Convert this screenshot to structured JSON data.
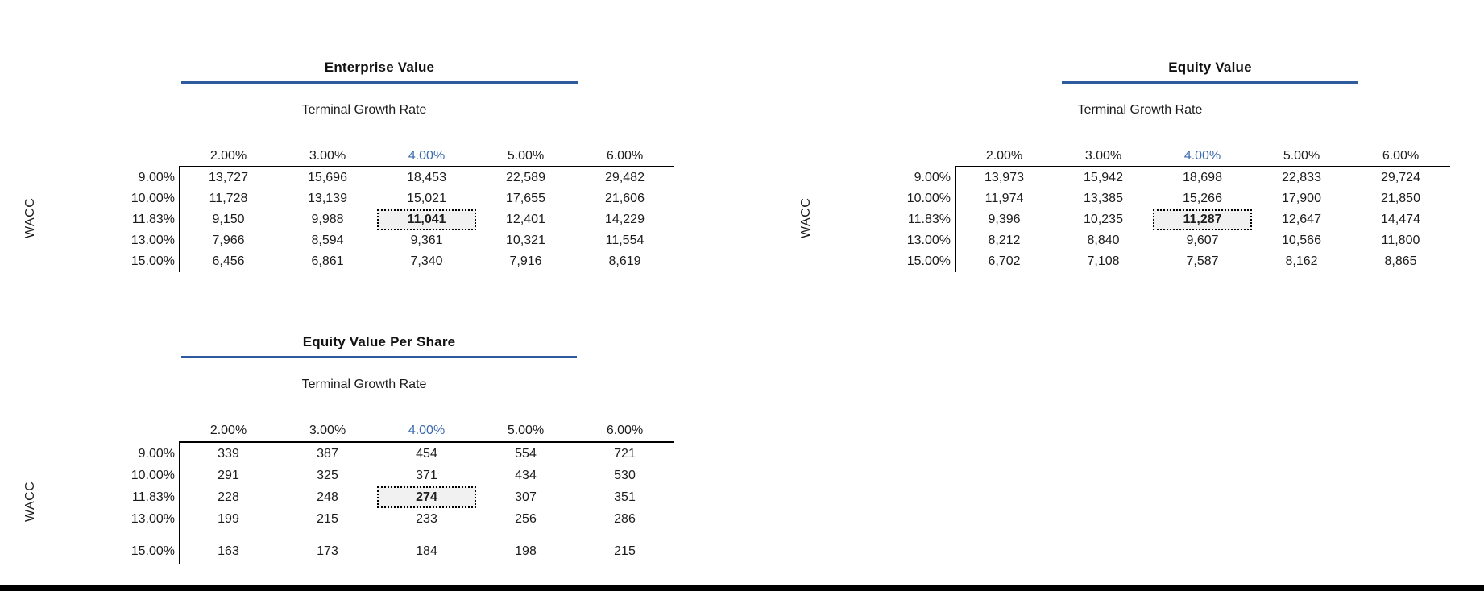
{
  "colors": {
    "accent_blue_underline": "#2E5B9E",
    "highlight_column_blue": "#3C69AE",
    "highlight_cell_bg": "#F1F1F1",
    "bottom_bar": "#000000"
  },
  "axis": {
    "col_label": "Terminal Growth Rate",
    "row_label": "WACC"
  },
  "columns": [
    "2.00%",
    "3.00%",
    "4.00%",
    "5.00%",
    "6.00%"
  ],
  "rows": [
    "9.00%",
    "10.00%",
    "11.83%",
    "13.00%",
    "15.00%"
  ],
  "highlight": {
    "row": 2,
    "col": 2
  },
  "tables": [
    {
      "title": "Enterprise Value",
      "values": [
        [
          "13,727",
          "15,696",
          "18,453",
          "22,589",
          "29,482"
        ],
        [
          "11,728",
          "13,139",
          "15,021",
          "17,655",
          "21,606"
        ],
        [
          "9,150",
          "9,988",
          "11,041",
          "12,401",
          "14,229"
        ],
        [
          "7,966",
          "8,594",
          "9,361",
          "10,321",
          "11,554"
        ],
        [
          "6,456",
          "6,861",
          "7,340",
          "7,916",
          "8,619"
        ]
      ]
    },
    {
      "title": "Equity Value",
      "values": [
        [
          "13,973",
          "15,942",
          "18,698",
          "22,833",
          "29,724"
        ],
        [
          "11,974",
          "13,385",
          "15,266",
          "17,900",
          "21,850"
        ],
        [
          "9,396",
          "10,235",
          "11,287",
          "12,647",
          "14,474"
        ],
        [
          "8,212",
          "8,840",
          "9,607",
          "10,566",
          "11,800"
        ],
        [
          "6,702",
          "7,108",
          "7,587",
          "8,162",
          "8,865"
        ]
      ]
    },
    {
      "title": "Equity Value Per Share",
      "values": [
        [
          "339",
          "387",
          "454",
          "554",
          "721"
        ],
        [
          "291",
          "325",
          "371",
          "434",
          "530"
        ],
        [
          "228",
          "248",
          "274",
          "307",
          "351"
        ],
        [
          "199",
          "215",
          "233",
          "256",
          "286"
        ],
        [
          "163",
          "173",
          "184",
          "198",
          "215"
        ]
      ]
    }
  ]
}
